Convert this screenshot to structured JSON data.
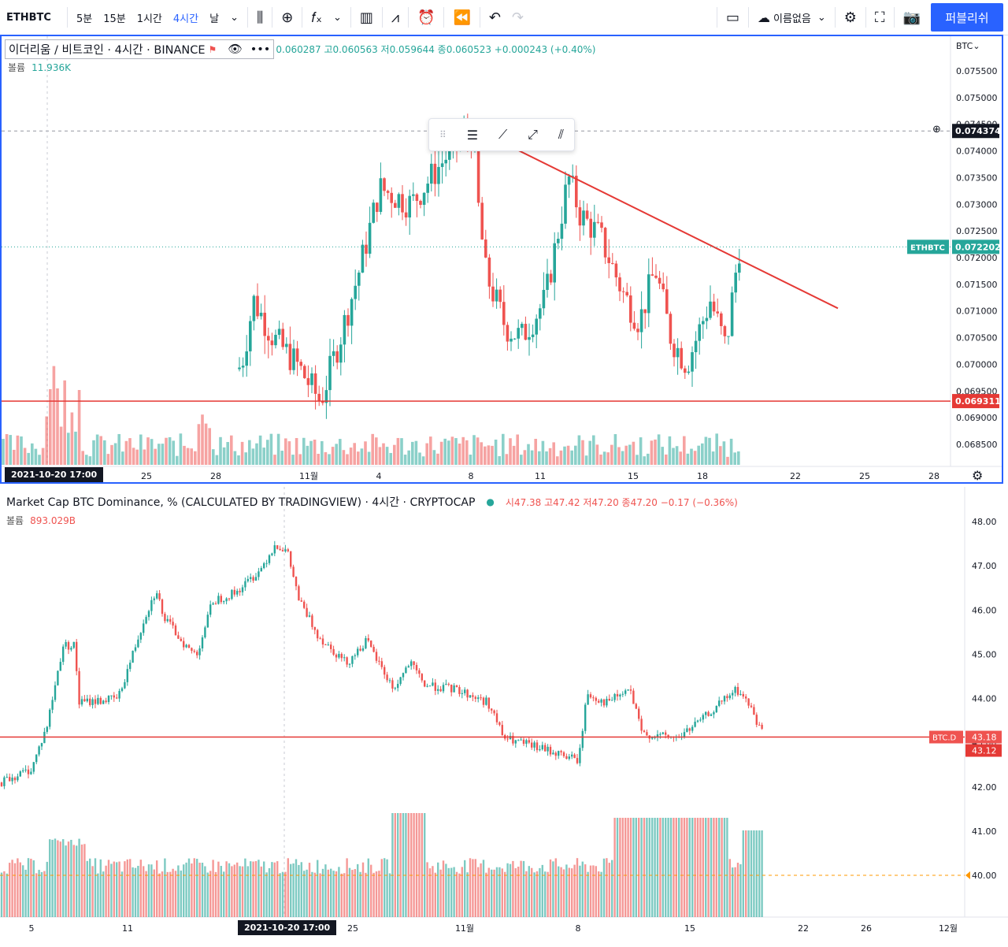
{
  "toolbar": {
    "symbol": "ETHBTC",
    "intervals": [
      "5분",
      "15분",
      "1시간",
      "4시간",
      "날"
    ],
    "active_interval": "4시간",
    "layout_name": "이름없음",
    "publish_label": "퍼블리쉬"
  },
  "pane1": {
    "title": "이더리움 / 비트코인 · 4시간 · BINANCE",
    "ohlc_text": "0.060287 고0.060563 저0.059644 종0.060523 +0.000243 (+0.40%)",
    "volume_label": "볼륨",
    "volume_value": "11.936K",
    "price_currency": "BTC",
    "price_ticks": [
      "0.075500",
      "0.075000",
      "0.074500",
      "0.074000",
      "0.073500",
      "0.073000",
      "0.072500",
      "0.072000",
      "0.071500",
      "0.071000",
      "0.070500",
      "0.070000",
      "0.069500",
      "0.069000",
      "0.068500"
    ],
    "crosshair_price": "0.074374",
    "symbol_tag": "ETHBTC",
    "last_price": "0.072202",
    "hline_price": "0.069311",
    "time_labels": [
      "25",
      "28",
      "11월",
      "4",
      "8",
      "11",
      "15",
      "18",
      "22",
      "25",
      "28"
    ],
    "crosshair_date": "2021-10-20   17:00",
    "colors": {
      "up": "#26a69a",
      "down": "#ef5350",
      "line": "#e53935"
    }
  },
  "pane2": {
    "title": "Market Cap BTC Dominance, % (CALCULATED BY TRADINGVIEW) · 4시간 · CRYPTOCAP",
    "ohlc_text": "시47.38 고47.42 저47.20 종47.20 −0.17 (−0.36%)",
    "volume_label": "볼륨",
    "volume_value": "893.029B",
    "price_ticks": [
      "48.00",
      "47.00",
      "46.00",
      "45.00",
      "44.00",
      "43.00",
      "42.00",
      "41.00",
      "40.00"
    ],
    "symbol_tag": "BTC.D",
    "last_price": "43.18",
    "hline_price": "43.12",
    "time_labels": [
      "5",
      "11",
      "25",
      "11월",
      "8",
      "15",
      "22",
      "26",
      "12월"
    ],
    "crosshair_date": "2021-10-20   17:00"
  }
}
